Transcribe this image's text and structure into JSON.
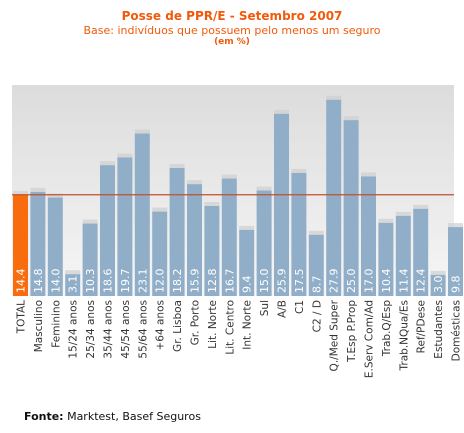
{
  "title": "Posse de PPR/E - Setembro 2007",
  "subtitle": "Base: indivíduos que possuem pelo menos um seguro",
  "unit_note": "(em %)",
  "source_label": "Fonte:",
  "source_text": "Marktest, Basef Seguros",
  "colors": {
    "bar": "#91aec8",
    "highlight_bar": "#f86c0e",
    "reference_line": "#c0512c",
    "label_on_bar": "#ffffff",
    "plot_background_top": "#dcdcdc",
    "plot_background_bottom": "#f6f6f6"
  },
  "chart_data": {
    "type": "bar",
    "categories": [
      "TOTAL",
      "Masculino",
      "Feminino",
      "15/24 anos",
      "25/34 anos",
      "35/44 anos",
      "45/54 anos",
      "55/64 anos",
      "+64  anos",
      "Gr. Lisboa",
      "Gr. Porto",
      "Lit. Norte",
      "Lit. Centro",
      "Int. Norte",
      "Sul",
      "A/B",
      "C1",
      "C2 / D",
      "Q./Med Super",
      "T.Esp P.Prop",
      "E.Serv Com/Ad",
      "Trab.Q/Esp",
      "Trab.NQua/Es",
      "Ref/PDese",
      "Estudantes",
      "Domésticas"
    ],
    "values": [
      14.4,
      14.8,
      14.0,
      3.1,
      10.3,
      18.6,
      19.7,
      23.1,
      12.0,
      18.2,
      15.9,
      12.8,
      16.7,
      9.4,
      15.0,
      25.9,
      17.5,
      8.7,
      27.9,
      25.0,
      17.0,
      10.4,
      11.4,
      12.4,
      3.0,
      9.8
    ],
    "value_labels": [
      "14.4",
      "14.8",
      "14.0",
      "3.1",
      "10.3",
      "18.6",
      "19.7",
      "23.1",
      "12.0",
      "18.2",
      "15.9",
      "12.8",
      "16.7",
      "9.4",
      "15.0",
      "25.9",
      "17.5",
      "8.7",
      "27.9",
      "25.0",
      "17.0",
      "10.4",
      "11.4",
      "12.4",
      "3.0",
      "9.8"
    ],
    "highlight_category": "TOTAL",
    "reference_line_value": 14.4,
    "ylim": [
      0,
      30
    ],
    "xlabel": "",
    "ylabel": "",
    "grid": false,
    "legend": "none"
  }
}
